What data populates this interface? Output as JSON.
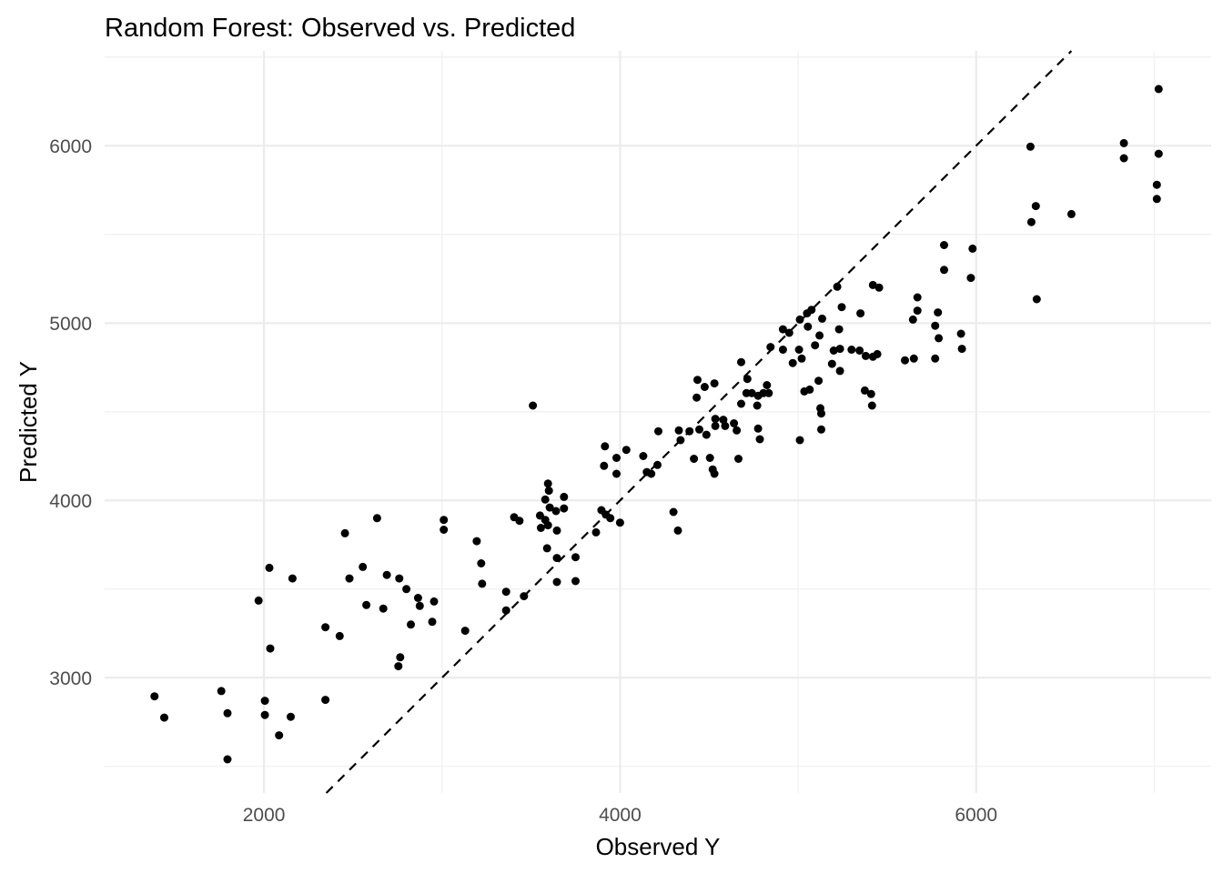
{
  "figure": {
    "background_color": "#ffffff"
  },
  "chart_data": {
    "type": "scatter",
    "title": "Random Forest: Observed vs. Predicted",
    "xlabel": "Observed Y",
    "ylabel": "Predicted Y",
    "xlim": [
      1105,
      7320
    ],
    "ylim": [
      2350,
      6535
    ],
    "x_major_ticks": [
      2000,
      4000,
      6000
    ],
    "x_minor_ticks": [
      3000,
      5000,
      7000
    ],
    "y_major_ticks": [
      3000,
      4000,
      5000,
      6000
    ],
    "y_minor_ticks": [
      2500,
      3500,
      4500,
      5500,
      6500
    ],
    "grid": "on",
    "legend": "none",
    "point_color": "#000000",
    "point_radius": 4.5,
    "grid_major_color": "#ebebeb",
    "grid_minor_color": "#f1f1f1",
    "tick_label_color": "#4d4d4d",
    "title_color": "#000000",
    "reference_line": {
      "name": "identity-line",
      "slope": 1,
      "intercept": 0,
      "style": "dashed",
      "color": "#000000"
    },
    "points": [
      [
        2635,
        3900
      ],
      [
        3010,
        3890
      ],
      [
        3010,
        3835
      ],
      [
        2455,
        3815
      ],
      [
        3195,
        3770
      ],
      [
        2030,
        3620
      ],
      [
        2555,
        3625
      ],
      [
        2160,
        3560
      ],
      [
        2480,
        3560
      ],
      [
        2690,
        3580
      ],
      [
        2760,
        3560
      ],
      [
        3220,
        3645
      ],
      [
        3225,
        3530
      ],
      [
        2800,
        3500
      ],
      [
        2865,
        3450
      ],
      [
        2875,
        3405
      ],
      [
        2955,
        3430
      ],
      [
        1970,
        3435
      ],
      [
        2575,
        3410
      ],
      [
        2670,
        3390
      ],
      [
        2825,
        3300
      ],
      [
        2945,
        3315
      ],
      [
        2345,
        3285
      ],
      [
        2425,
        3235
      ],
      [
        3130,
        3265
      ],
      [
        2035,
        3165
      ],
      [
        2765,
        3115
      ],
      [
        2755,
        3065
      ],
      [
        1385,
        2895
      ],
      [
        1760,
        2925
      ],
      [
        2345,
        2875
      ],
      [
        2005,
        2870
      ],
      [
        1795,
        2800
      ],
      [
        2005,
        2790
      ],
      [
        2150,
        2780
      ],
      [
        1440,
        2775
      ],
      [
        2085,
        2675
      ],
      [
        1795,
        2540
      ],
      [
        3405,
        3905
      ],
      [
        3435,
        3885
      ],
      [
        3550,
        3915
      ],
      [
        3580,
        3890
      ],
      [
        3595,
        3860
      ],
      [
        3555,
        3845
      ],
      [
        3640,
        3940
      ],
      [
        3685,
        3955
      ],
      [
        3645,
        3830
      ],
      [
        3865,
        3820
      ],
      [
        3895,
        3945
      ],
      [
        3920,
        3920
      ],
      [
        3945,
        3900
      ],
      [
        4000,
        3875
      ],
      [
        3590,
        3730
      ],
      [
        3645,
        3675
      ],
      [
        3750,
        3680
      ],
      [
        3645,
        3540
      ],
      [
        3750,
        3545
      ],
      [
        4300,
        3935
      ],
      [
        4325,
        3830
      ],
      [
        3360,
        3485
      ],
      [
        3460,
        3460
      ],
      [
        3360,
        3380
      ],
      [
        3510,
        4535
      ],
      [
        3595,
        4095
      ],
      [
        3600,
        4055
      ],
      [
        3580,
        4005
      ],
      [
        3605,
        3960
      ],
      [
        3685,
        4020
      ],
      [
        3915,
        4305
      ],
      [
        3910,
        4195
      ],
      [
        3980,
        4240
      ],
      [
        3980,
        4150
      ],
      [
        4035,
        4285
      ],
      [
        4130,
        4250
      ],
      [
        4210,
        4200
      ],
      [
        4150,
        4160
      ],
      [
        4175,
        4150
      ],
      [
        4215,
        4390
      ],
      [
        4330,
        4395
      ],
      [
        4340,
        4340
      ],
      [
        4390,
        4390
      ],
      [
        4445,
        4400
      ],
      [
        4485,
        4370
      ],
      [
        4535,
        4460
      ],
      [
        4535,
        4420
      ],
      [
        4580,
        4455
      ],
      [
        4590,
        4420
      ],
      [
        4640,
        4435
      ],
      [
        4655,
        4395
      ],
      [
        4415,
        4235
      ],
      [
        4505,
        4240
      ],
      [
        4520,
        4175
      ],
      [
        4530,
        4150
      ],
      [
        4665,
        4235
      ],
      [
        4435,
        4680
      ],
      [
        4475,
        4640
      ],
      [
        4430,
        4580
      ],
      [
        4530,
        4660
      ],
      [
        4680,
        4780
      ],
      [
        4715,
        4685
      ],
      [
        4710,
        4605
      ],
      [
        4740,
        4605
      ],
      [
        4775,
        4590
      ],
      [
        4805,
        4605
      ],
      [
        4770,
        4535
      ],
      [
        4680,
        4545
      ],
      [
        4825,
        4650
      ],
      [
        4835,
        4605
      ],
      [
        4775,
        4405
      ],
      [
        4785,
        4345
      ],
      [
        4915,
        4965
      ],
      [
        4950,
        4945
      ],
      [
        4845,
        4865
      ],
      [
        4915,
        4850
      ],
      [
        5005,
        4850
      ],
      [
        4970,
        4775
      ],
      [
        5020,
        4800
      ],
      [
        5095,
        4875
      ],
      [
        5055,
        4980
      ],
      [
        5010,
        5020
      ],
      [
        5050,
        5055
      ],
      [
        5075,
        5075
      ],
      [
        5135,
        5025
      ],
      [
        5120,
        4930
      ],
      [
        5035,
        4615
      ],
      [
        5065,
        4625
      ],
      [
        5010,
        4340
      ],
      [
        5115,
        4675
      ],
      [
        5125,
        4520
      ],
      [
        5130,
        4490
      ],
      [
        5130,
        4400
      ],
      [
        5200,
        4845
      ],
      [
        5235,
        4855
      ],
      [
        5190,
        4770
      ],
      [
        5235,
        4730
      ],
      [
        5300,
        4850
      ],
      [
        5230,
        4965
      ],
      [
        5350,
        5055
      ],
      [
        5345,
        4845
      ],
      [
        5380,
        4815
      ],
      [
        5420,
        4810
      ],
      [
        5445,
        4825
      ],
      [
        5600,
        4790
      ],
      [
        5650,
        4800
      ],
      [
        5770,
        4800
      ],
      [
        5770,
        4985
      ],
      [
        5790,
        4915
      ],
      [
        5915,
        4940
      ],
      [
        5920,
        4855
      ],
      [
        5375,
        4620
      ],
      [
        5410,
        4600
      ],
      [
        5415,
        4535
      ],
      [
        7025,
        6320
      ],
      [
        6305,
        5995
      ],
      [
        6830,
        6015
      ],
      [
        6830,
        5930
      ],
      [
        7025,
        5955
      ],
      [
        7015,
        5780
      ],
      [
        7015,
        5700
      ],
      [
        6335,
        5660
      ],
      [
        6310,
        5570
      ],
      [
        6535,
        5615
      ],
      [
        5820,
        5440
      ],
      [
        5980,
        5420
      ],
      [
        5820,
        5300
      ],
      [
        5970,
        5255
      ],
      [
        5220,
        5205
      ],
      [
        5245,
        5090
      ],
      [
        5420,
        5215
      ],
      [
        5455,
        5200
      ],
      [
        5670,
        5145
      ],
      [
        5670,
        5070
      ],
      [
        5645,
        5020
      ],
      [
        5785,
        5060
      ],
      [
        6340,
        5135
      ]
    ]
  }
}
